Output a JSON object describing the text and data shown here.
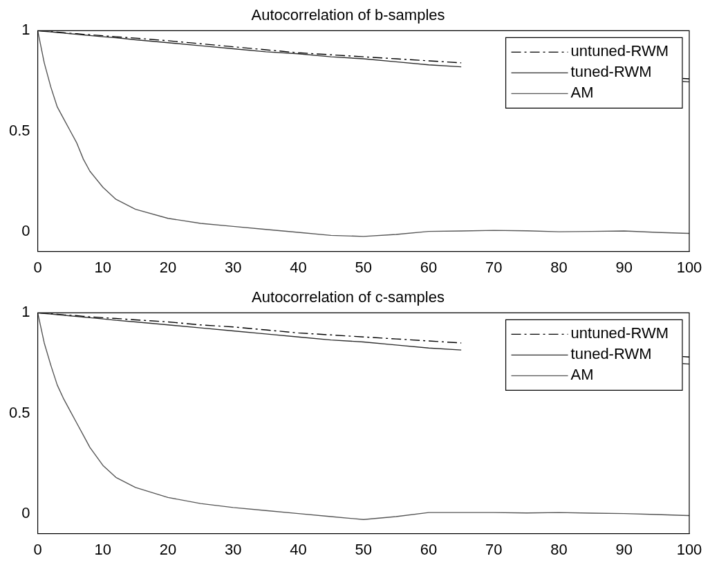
{
  "chart_data": [
    {
      "type": "line",
      "title": "Autocorrelation of b-samples",
      "x": [
        0,
        1,
        2,
        3,
        4,
        5,
        6,
        7,
        8,
        10,
        12,
        15,
        20,
        25,
        30,
        35,
        40,
        45,
        50,
        55,
        60,
        65,
        70,
        75,
        80,
        85,
        90,
        95,
        99,
        100
      ],
      "xlim": [
        0,
        100
      ],
      "xticks": [
        0,
        10,
        20,
        30,
        40,
        50,
        60,
        70,
        80,
        90,
        100
      ],
      "ylim": [
        -0.1,
        1
      ],
      "yticks": [
        0,
        0.5,
        1
      ],
      "grid": false,
      "legend": "top right",
      "marker": "none",
      "series": [
        {
          "name": "untuned-RWM",
          "color": "#000000",
          "line_style": "dashed",
          "values": [
            1,
            0.998,
            0.995,
            0.993,
            0.99,
            0.987,
            0.985,
            0.982,
            0.98,
            0.975,
            0.97,
            0.963,
            0.95,
            0.935,
            0.92,
            0.905,
            0.89,
            0.88,
            0.87,
            0.86,
            0.85,
            0.84,
            null,
            null,
            null,
            null,
            null,
            null,
            0.762,
            0.76
          ]
        },
        {
          "name": "tuned-RWM",
          "color": "#2b2b2b",
          "line_style": "solid",
          "values": [
            1,
            0.997,
            0.994,
            0.991,
            0.988,
            0.985,
            0.982,
            0.979,
            0.976,
            0.97,
            0.965,
            0.955,
            0.94,
            0.925,
            0.91,
            0.895,
            0.885,
            0.87,
            0.86,
            0.845,
            0.83,
            0.82,
            null,
            null,
            null,
            null,
            null,
            null,
            0.747,
            0.745
          ]
        },
        {
          "name": "AM",
          "color": "#555555",
          "line_style": "solid",
          "values": [
            1,
            0.84,
            0.72,
            0.62,
            0.56,
            0.5,
            0.44,
            0.36,
            0.3,
            0.22,
            0.16,
            0.11,
            0.065,
            0.04,
            0.025,
            0.01,
            -0.005,
            -0.02,
            -0.025,
            -0.015,
            0.0,
            0.002,
            0.005,
            0.003,
            -0.002,
            0.0,
            0.002,
            -0.005,
            -0.009,
            -0.01
          ]
        }
      ]
    },
    {
      "type": "line",
      "title": "Autocorrelation of c-samples",
      "x": [
        0,
        1,
        2,
        3,
        4,
        5,
        6,
        7,
        8,
        10,
        12,
        15,
        20,
        25,
        30,
        35,
        40,
        45,
        50,
        55,
        60,
        65,
        70,
        75,
        80,
        85,
        90,
        95,
        99,
        100
      ],
      "xlim": [
        0,
        100
      ],
      "xticks": [
        0,
        10,
        20,
        30,
        40,
        50,
        60,
        70,
        80,
        90,
        100
      ],
      "ylim": [
        -0.1,
        1
      ],
      "yticks": [
        0,
        0.5,
        1
      ],
      "grid": false,
      "legend": "top right",
      "marker": "none",
      "series": [
        {
          "name": "untuned-RWM",
          "color": "#000000",
          "line_style": "dashed",
          "values": [
            1,
            0.998,
            0.995,
            0.993,
            0.99,
            0.988,
            0.986,
            0.983,
            0.98,
            0.976,
            0.972,
            0.965,
            0.955,
            0.94,
            0.93,
            0.915,
            0.9,
            0.89,
            0.88,
            0.87,
            0.86,
            0.85,
            null,
            null,
            null,
            null,
            null,
            null,
            0.782,
            0.78
          ]
        },
        {
          "name": "tuned-RWM",
          "color": "#2b2b2b",
          "line_style": "solid",
          "values": [
            1,
            0.997,
            0.994,
            0.991,
            0.988,
            0.985,
            0.982,
            0.979,
            0.976,
            0.97,
            0.963,
            0.955,
            0.94,
            0.925,
            0.91,
            0.895,
            0.88,
            0.865,
            0.855,
            0.84,
            0.825,
            0.815,
            null,
            null,
            null,
            null,
            null,
            null,
            0.747,
            0.745
          ]
        },
        {
          "name": "AM",
          "color": "#555555",
          "line_style": "solid",
          "values": [
            1,
            0.85,
            0.74,
            0.64,
            0.57,
            0.51,
            0.45,
            0.39,
            0.33,
            0.24,
            0.18,
            0.13,
            0.08,
            0.05,
            0.03,
            0.015,
            0.0,
            -0.015,
            -0.03,
            -0.015,
            0.005,
            0.005,
            0.005,
            0.003,
            0.005,
            0.002,
            0.0,
            -0.005,
            -0.009,
            -0.01
          ]
        }
      ]
    }
  ]
}
